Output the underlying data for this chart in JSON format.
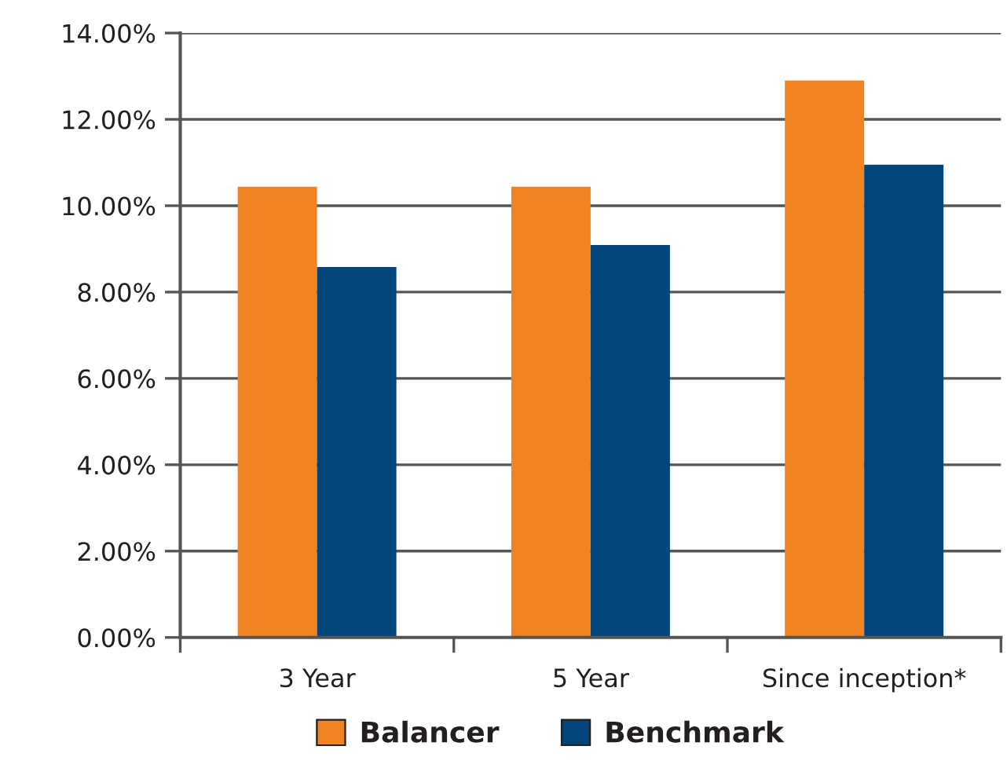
{
  "chart_data": {
    "type": "bar",
    "categories": [
      "3 Year",
      "5 Year",
      "Since inception*"
    ],
    "series": [
      {
        "name": "Balancer",
        "color": "#f28322",
        "values": [
          10.44,
          10.44,
          12.9
        ]
      },
      {
        "name": "Benchmark",
        "color": "#02457a",
        "values": [
          8.58,
          9.09,
          10.95
        ]
      }
    ],
    "ylim": [
      0,
      14
    ],
    "yticks": [
      {
        "value": 0,
        "label": "0.00%"
      },
      {
        "value": 2,
        "label": "2.00%"
      },
      {
        "value": 4,
        "label": "4.00%"
      },
      {
        "value": 6,
        "label": "6.00%"
      },
      {
        "value": 8,
        "label": "8.00%"
      },
      {
        "value": 10,
        "label": "10.00%"
      },
      {
        "value": 12,
        "label": "12.00%"
      },
      {
        "value": 14,
        "label": "14.00%"
      }
    ],
    "grid": "y",
    "legend": "bottom"
  }
}
